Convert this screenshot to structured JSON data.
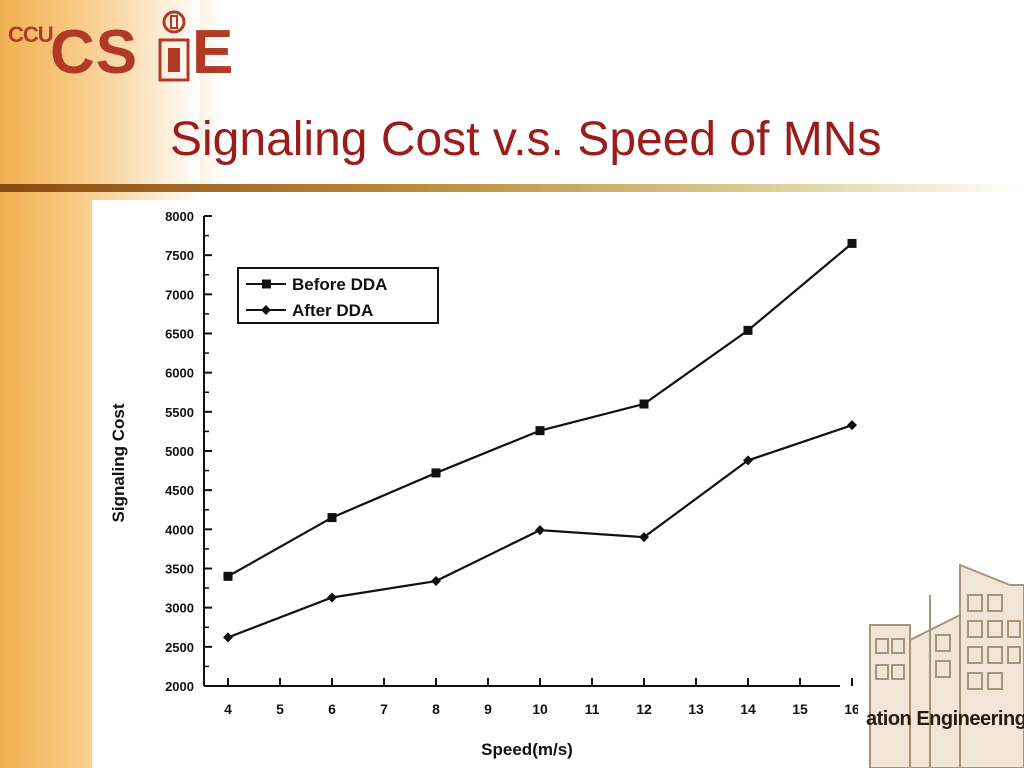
{
  "slide": {
    "logo_small": "CCU",
    "logo_main": "CS",
    "logo_end": "E",
    "title": "Signaling Cost v.s. Speed of MNs",
    "footer_fragment": "ation Engineering"
  },
  "colors": {
    "title": "#9c1c1c",
    "logo": "#b03a26",
    "accent_orange": "#f2b052",
    "series_line": "#111111"
  },
  "chart_data": {
    "type": "line",
    "title": "",
    "xlabel": "Speed(m/s)",
    "ylabel": "Signaling Cost",
    "x": [
      4,
      6,
      8,
      10,
      12,
      14,
      16
    ],
    "x_ticks": [
      "4",
      "5",
      "6",
      "7",
      "8",
      "9",
      "10",
      "11",
      "12",
      "13",
      "14",
      "15",
      "16"
    ],
    "y_ticks": [
      "2000",
      "2500",
      "3000",
      "3500",
      "4000",
      "4500",
      "5000",
      "5500",
      "6000",
      "6500",
      "7000",
      "7500",
      "8000"
    ],
    "xlim": [
      4,
      16
    ],
    "ylim": [
      2000,
      8000
    ],
    "grid": false,
    "legend_position": "top-left",
    "series": [
      {
        "name": "Before DDA",
        "marker": "square",
        "values": [
          3400,
          4150,
          4720,
          5260,
          5600,
          6540,
          7650
        ]
      },
      {
        "name": "After DDA",
        "marker": "diamond",
        "values": [
          2620,
          3130,
          3340,
          3990,
          3900,
          4880,
          5330
        ]
      }
    ]
  }
}
